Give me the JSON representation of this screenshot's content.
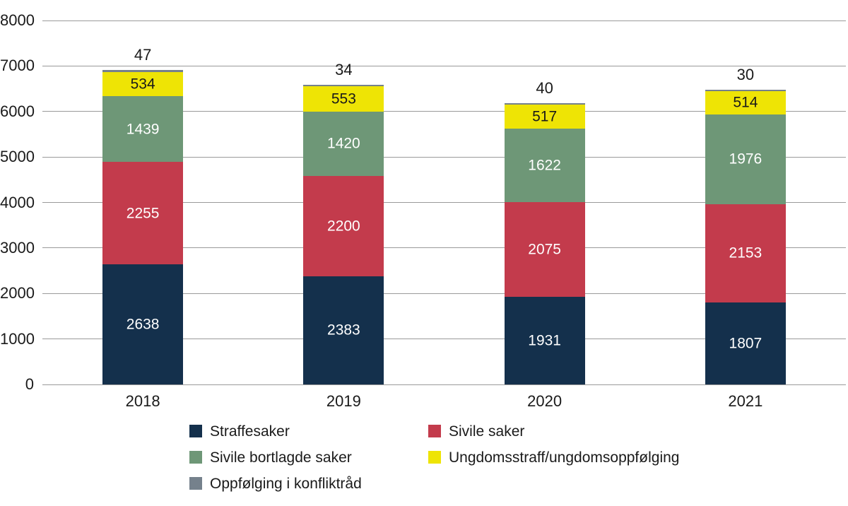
{
  "chart_data": {
    "type": "bar",
    "stacked": true,
    "title": "",
    "xlabel": "",
    "ylabel": "",
    "categories": [
      "2018",
      "2019",
      "2020",
      "2021"
    ],
    "series": [
      {
        "name": "Straffesaker",
        "color": "#14304C",
        "label_color": "#ffffff",
        "label_position": "inside",
        "values": [
          2638,
          2383,
          1931,
          1807
        ]
      },
      {
        "name": "Sivile saker",
        "color": "#C33B4C",
        "label_color": "#ffffff",
        "label_position": "inside",
        "values": [
          2255,
          2200,
          2075,
          2153
        ]
      },
      {
        "name": "Sivile bortlagde saker",
        "color": "#6E9777",
        "label_color": "#ffffff",
        "label_position": "inside",
        "values": [
          1439,
          1420,
          1622,
          1976
        ]
      },
      {
        "name": "Ungdomsstraff/ungdomsoppfølging",
        "color": "#EEE405",
        "label_color": "#1a1a1a",
        "label_position": "inside",
        "values": [
          534,
          553,
          517,
          514
        ]
      },
      {
        "name": "Oppfølging i konfliktråd",
        "color": "#75818C",
        "label_color": "#1a1a1a",
        "label_position": "above",
        "values": [
          47,
          34,
          40,
          30
        ]
      }
    ],
    "ylim": [
      0,
      8000
    ],
    "yticks": [
      "0",
      "1000",
      "2000",
      "3000",
      "4000",
      "5000",
      "6000",
      "7000",
      "8000"
    ],
    "grid": true,
    "gridline_color": "#9a9a9a",
    "legend_position": "bottom"
  }
}
